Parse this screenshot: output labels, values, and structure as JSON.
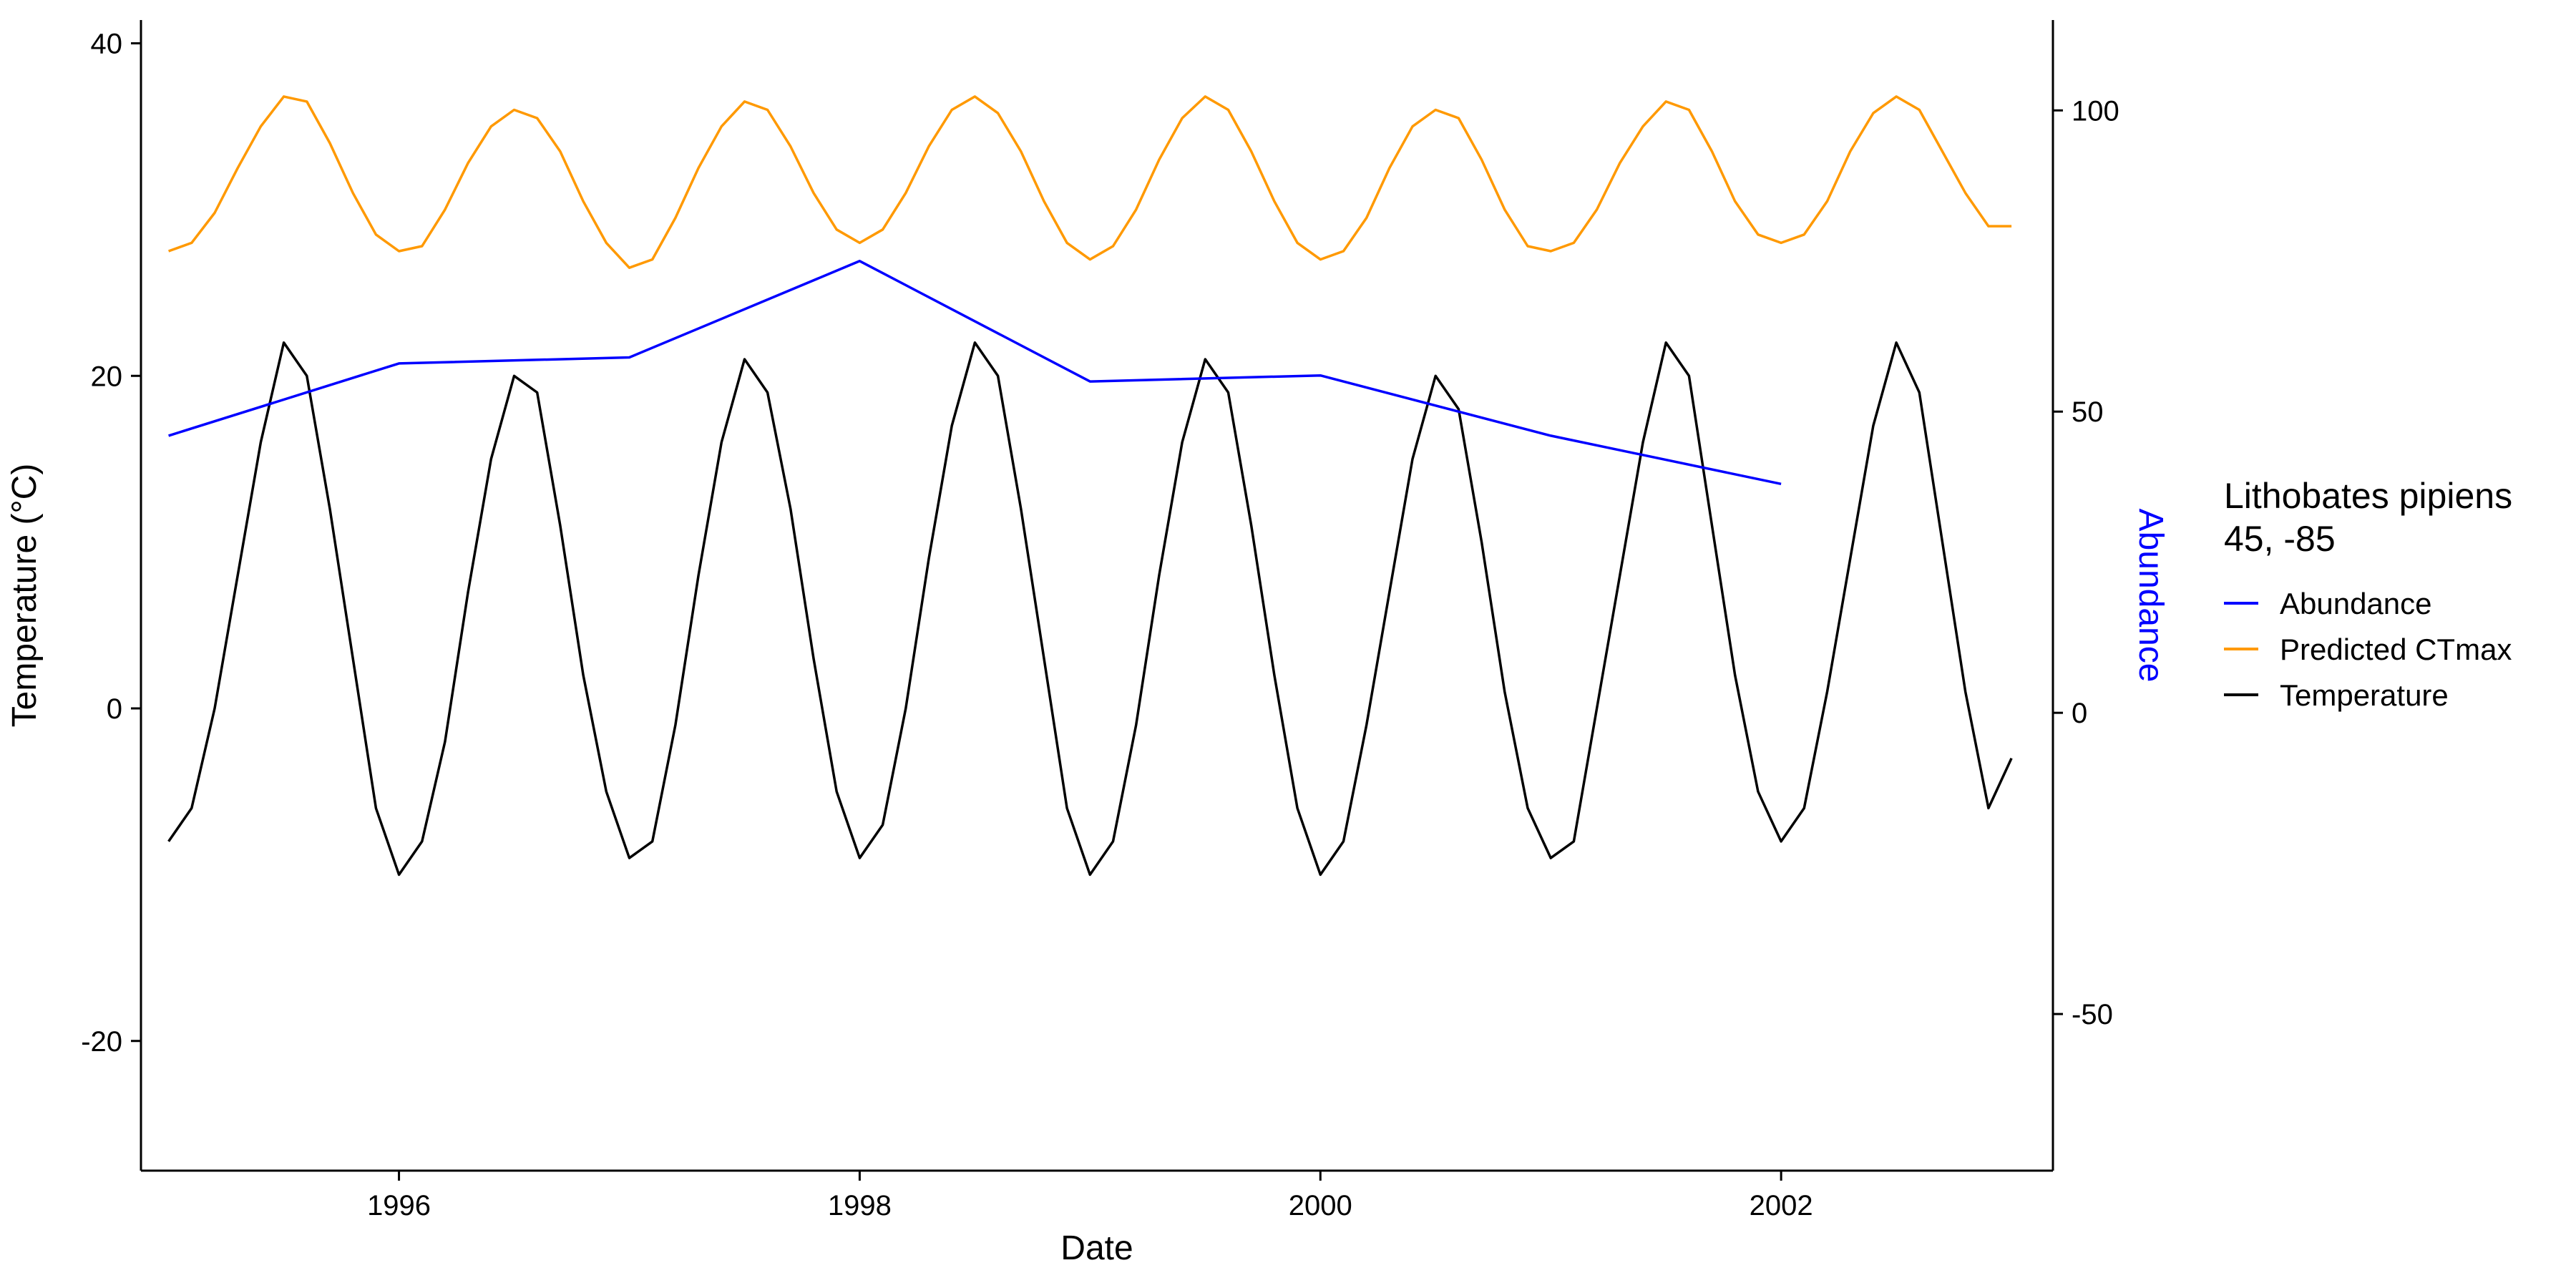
{
  "chart_data": {
    "type": "line",
    "xlabel": "Date",
    "ylabel_left": "Temperature (°C)",
    "ylabel_right": "Abundance",
    "xlim": [
      1994.88,
      2003.18
    ],
    "x_ticks": [
      1996,
      1998,
      2000,
      2002
    ],
    "x_tick_labels": [
      "1996",
      "1998",
      "2000",
      "2002"
    ],
    "ylim_left": [
      -27.8,
      41.4
    ],
    "y_left_ticks": [
      -20,
      0,
      20,
      40
    ],
    "y_left_tick_labels": [
      "-20",
      "0",
      "20",
      "40"
    ],
    "ylim_right": [
      -76,
      115
    ],
    "y_right_ticks": [
      -50,
      0,
      50,
      100
    ],
    "y_right_tick_labels": [
      "-50",
      "0",
      "50",
      "100"
    ],
    "grid": false,
    "legend": {
      "title_lines": [
        "Lithobates pipiens",
        "45, -85"
      ],
      "placement": "right",
      "entries": [
        {
          "label": "Abundance",
          "color": "#0000ff"
        },
        {
          "label": "Predicted CTmax",
          "color": "#ff9900"
        },
        {
          "label": "Temperature",
          "color": "#000000"
        }
      ]
    },
    "series": [
      {
        "name": "Abundance",
        "axis": "right",
        "color": "#0000ff",
        "x": [
          1995.0,
          1996.0,
          1997.0,
          1998.0,
          1999.0,
          2000.0,
          2001.0,
          2002.0
        ],
        "y": [
          46,
          58,
          59,
          75,
          55,
          56,
          46,
          38
        ]
      },
      {
        "name": "Predicted CTmax",
        "axis": "left",
        "color": "#ff9900",
        "x": [
          1995.0,
          1995.1,
          1995.2,
          1995.3,
          1995.4,
          1995.5,
          1995.6,
          1995.7,
          1995.8,
          1995.9,
          1996.0,
          1996.1,
          1996.2,
          1996.3,
          1996.4,
          1996.5,
          1996.6,
          1996.7,
          1996.8,
          1996.9,
          1997.0,
          1997.1,
          1997.2,
          1997.3,
          1997.4,
          1997.5,
          1997.6,
          1997.7,
          1997.8,
          1997.9,
          1998.0,
          1998.1,
          1998.2,
          1998.3,
          1998.4,
          1998.5,
          1998.6,
          1998.7,
          1998.8,
          1998.9,
          1999.0,
          1999.1,
          1999.2,
          1999.3,
          1999.4,
          1999.5,
          1999.6,
          1999.7,
          1999.8,
          1999.9,
          2000.0,
          2000.1,
          2000.2,
          2000.3,
          2000.4,
          2000.5,
          2000.6,
          2000.7,
          2000.8,
          2000.9,
          2001.0,
          2001.1,
          2001.2,
          2001.3,
          2001.4,
          2001.5,
          2001.6,
          2001.7,
          2001.8,
          2001.9,
          2002.0,
          2002.1,
          2002.2,
          2002.3,
          2002.4,
          2002.5,
          2002.6,
          2002.7,
          2002.8,
          2002.9,
          2003.0
        ],
        "y": [
          27.5,
          28.0,
          29.8,
          32.5,
          35.0,
          36.8,
          36.5,
          34.0,
          31.0,
          28.5,
          27.5,
          27.8,
          30.0,
          32.8,
          35.0,
          36.0,
          35.5,
          33.5,
          30.5,
          28.0,
          26.5,
          27.0,
          29.5,
          32.5,
          35.0,
          36.5,
          36.0,
          33.8,
          31.0,
          28.8,
          28.0,
          28.8,
          31.0,
          33.8,
          36.0,
          36.8,
          35.8,
          33.5,
          30.5,
          28.0,
          27.0,
          27.8,
          30.0,
          33.0,
          35.5,
          36.8,
          36.0,
          33.5,
          30.5,
          28.0,
          27.0,
          27.5,
          29.5,
          32.5,
          35.0,
          36.0,
          35.5,
          33.0,
          30.0,
          27.8,
          27.5,
          28.0,
          30.0,
          32.8,
          35.0,
          36.5,
          36.0,
          33.5,
          30.5,
          28.5,
          28.0,
          28.5,
          30.5,
          33.5,
          35.8,
          36.8,
          36.0,
          33.5,
          31.0,
          29.0,
          29.0
        ]
      },
      {
        "name": "Temperature",
        "axis": "left",
        "color": "#000000",
        "x": [
          1995.0,
          1995.1,
          1995.2,
          1995.3,
          1995.4,
          1995.5,
          1995.6,
          1995.7,
          1995.8,
          1995.9,
          1996.0,
          1996.1,
          1996.2,
          1996.3,
          1996.4,
          1996.5,
          1996.6,
          1996.7,
          1996.8,
          1996.9,
          1997.0,
          1997.1,
          1997.2,
          1997.3,
          1997.4,
          1997.5,
          1997.6,
          1997.7,
          1997.8,
          1997.9,
          1998.0,
          1998.1,
          1998.2,
          1998.3,
          1998.4,
          1998.5,
          1998.6,
          1998.7,
          1998.8,
          1998.9,
          1999.0,
          1999.1,
          1999.2,
          1999.3,
          1999.4,
          1999.5,
          1999.6,
          1999.7,
          1999.8,
          1999.9,
          2000.0,
          2000.1,
          2000.2,
          2000.3,
          2000.4,
          2000.5,
          2000.6,
          2000.7,
          2000.8,
          2000.9,
          2001.0,
          2001.1,
          2001.2,
          2001.3,
          2001.4,
          2001.5,
          2001.6,
          2001.7,
          2001.8,
          2001.9,
          2002.0,
          2002.1,
          2002.2,
          2002.3,
          2002.4,
          2002.5,
          2002.6,
          2002.7,
          2002.8,
          2002.9,
          2003.0
        ],
        "y": [
          -8.0,
          -6.0,
          0.0,
          8.0,
          16.0,
          22.0,
          20.0,
          12.0,
          3.0,
          -6.0,
          -10.0,
          -8.0,
          -2.0,
          7.0,
          15.0,
          20.0,
          19.0,
          11.0,
          2.0,
          -5.0,
          -9.0,
          -8.0,
          -1.0,
          8.0,
          16.0,
          21.0,
          19.0,
          12.0,
          3.0,
          -5.0,
          -9.0,
          -7.0,
          0.0,
          9.0,
          17.0,
          22.0,
          20.0,
          12.0,
          3.0,
          -6.0,
          -10.0,
          -8.0,
          -1.0,
          8.0,
          16.0,
          21.0,
          19.0,
          11.0,
          2.0,
          -6.0,
          -10.0,
          -8.0,
          -1.0,
          7.0,
          15.0,
          20.0,
          18.0,
          10.0,
          1.0,
          -6.0,
          -9.0,
          -8.0,
          0.0,
          8.0,
          16.0,
          22.0,
          20.0,
          11.0,
          2.0,
          -5.0,
          -8.0,
          -6.0,
          1.0,
          9.0,
          17.0,
          22.0,
          19.0,
          10.0,
          1.0,
          -6.0,
          -3.0
        ]
      }
    ]
  }
}
